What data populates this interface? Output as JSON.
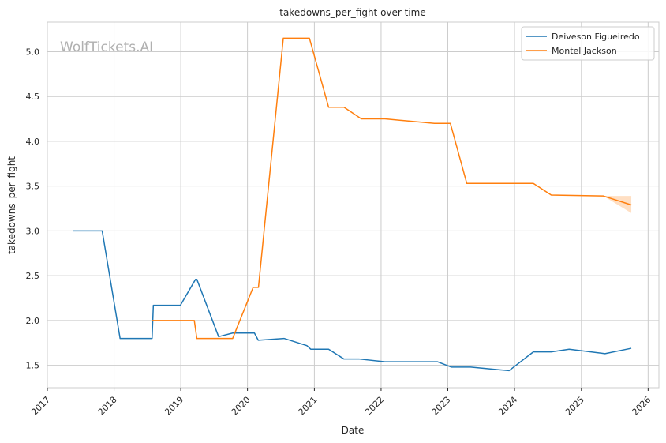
{
  "chart_data": {
    "type": "line",
    "title": "takedowns_per_fight over time",
    "xlabel": "Date",
    "ylabel": "takedowns_per_fight",
    "watermark": "WolfTickets.AI",
    "xlim": [
      "2017-01-01",
      "2026-03-01"
    ],
    "ylim": [
      1.25,
      5.33
    ],
    "x_ticks": [
      "2017",
      "2018",
      "2019",
      "2020",
      "2021",
      "2022",
      "2023",
      "2024",
      "2025",
      "2026"
    ],
    "y_ticks": [
      "1.5",
      "2.0",
      "2.5",
      "3.0",
      "3.5",
      "4.0",
      "4.5",
      "5.0"
    ],
    "grid": true,
    "legend_position": "top-right",
    "series": [
      {
        "name": "Deiveson Figueiredo",
        "color": "#1f77b4",
        "points": [
          [
            "2017-05-20",
            3.0
          ],
          [
            "2017-10-28",
            3.0
          ],
          [
            "2018-02-03",
            1.8
          ],
          [
            "2018-07-28",
            1.8
          ],
          [
            "2018-08-04",
            2.17
          ],
          [
            "2018-12-30",
            2.17
          ],
          [
            "2019-03-23",
            2.46
          ],
          [
            "2019-03-30",
            2.46
          ],
          [
            "2019-07-27",
            1.82
          ],
          [
            "2019-10-12",
            1.86
          ],
          [
            "2020-02-08",
            1.86
          ],
          [
            "2020-02-29",
            1.78
          ],
          [
            "2020-07-19",
            1.8
          ],
          [
            "2020-11-21",
            1.72
          ],
          [
            "2020-12-12",
            1.68
          ],
          [
            "2021-03-20",
            1.68
          ],
          [
            "2021-06-12",
            1.57
          ],
          [
            "2021-09-05",
            1.57
          ],
          [
            "2022-01-22",
            1.54
          ],
          [
            "2022-11-05",
            1.54
          ],
          [
            "2023-01-21",
            1.48
          ],
          [
            "2023-05-06",
            1.48
          ],
          [
            "2023-12-02",
            1.44
          ],
          [
            "2024-04-13",
            1.65
          ],
          [
            "2024-07-20",
            1.65
          ],
          [
            "2024-10-26",
            1.68
          ],
          [
            "2025-05-10",
            1.63
          ],
          [
            "2025-10-01",
            1.69
          ]
        ]
      },
      {
        "name": "Montel Jackson",
        "color": "#ff7f0e",
        "points": [
          [
            "2018-07-28",
            2.0
          ],
          [
            "2019-03-16",
            2.0
          ],
          [
            "2019-03-30",
            1.8
          ],
          [
            "2019-10-12",
            1.8
          ],
          [
            "2020-02-01",
            2.37
          ],
          [
            "2020-03-01",
            2.37
          ],
          [
            "2020-07-15",
            5.15
          ],
          [
            "2020-12-05",
            5.15
          ],
          [
            "2021-03-20",
            4.38
          ],
          [
            "2021-06-12",
            4.38
          ],
          [
            "2021-09-15",
            4.25
          ],
          [
            "2022-01-22",
            4.25
          ],
          [
            "2022-10-20",
            4.2
          ],
          [
            "2023-01-15",
            4.2
          ],
          [
            "2023-04-15",
            3.53
          ],
          [
            "2024-04-13",
            3.53
          ],
          [
            "2024-07-20",
            3.4
          ],
          [
            "2025-05-01",
            3.39
          ],
          [
            "2025-10-01",
            3.29
          ]
        ],
        "band": [
          [
            "2025-05-01",
            3.39,
            3.39
          ],
          [
            "2025-10-01",
            3.2,
            3.39
          ]
        ]
      }
    ]
  }
}
